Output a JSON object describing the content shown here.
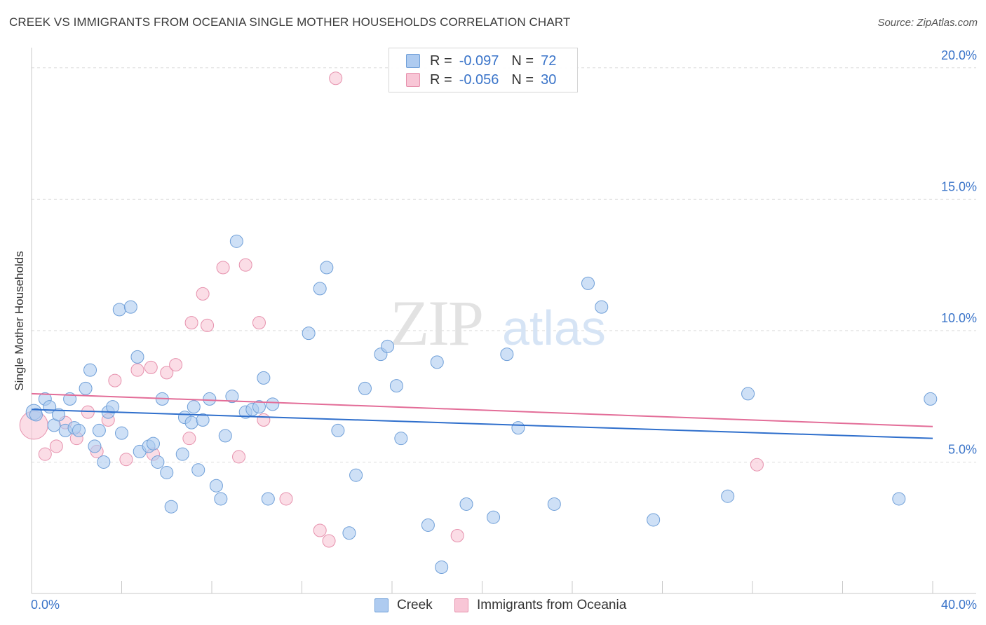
{
  "title": "CREEK VS IMMIGRANTS FROM OCEANIA SINGLE MOTHER HOUSEHOLDS CORRELATION CHART",
  "source": "Source: ZipAtlas.com",
  "watermark": {
    "zip": "ZIP",
    "atlas": "atlas"
  },
  "legend": {
    "creek": {
      "r_label": "R =",
      "r_value": "-0.097",
      "n_label": "N =",
      "n_value": "72"
    },
    "oceania": {
      "r_label": "R =",
      "r_value": "-0.056",
      "n_label": "N =",
      "n_value": "30"
    }
  },
  "colors": {
    "creek_fill": "#aecbf0",
    "creek_stroke": "#6f9fd8",
    "creek_line": "#2f6fcc",
    "oceania_fill": "#f8c6d6",
    "oceania_stroke": "#e691ad",
    "oceania_line": "#e36d98",
    "tick_label": "#3a74c9",
    "grid": "#dcdcdc"
  },
  "chart_data": {
    "type": "scatter",
    "ylabel": "Single Mother Households",
    "xlim": [
      0,
      40
    ],
    "ylim": [
      0,
      20.5
    ],
    "x_ticks": [
      0,
      4,
      8,
      12,
      16,
      20,
      24,
      28,
      32,
      36,
      40
    ],
    "x_tick_labels": {
      "start": "0.0%",
      "end": "40.0%"
    },
    "y_ticks": [
      5,
      10,
      15,
      20
    ],
    "y_tick_labels": [
      "5.0%",
      "10.0%",
      "15.0%",
      "20.0%"
    ],
    "grid": "horizontal dashed",
    "legend_placement": "top-center",
    "series": [
      {
        "name": "Creek",
        "trend": {
          "x": [
            0,
            40
          ],
          "y": [
            7.0,
            5.9
          ]
        },
        "points": [
          [
            0.1,
            6.9
          ],
          [
            0.2,
            6.8
          ],
          [
            0.6,
            7.4
          ],
          [
            0.8,
            7.1
          ],
          [
            1.0,
            6.4
          ],
          [
            1.2,
            6.8
          ],
          [
            1.5,
            6.2
          ],
          [
            1.7,
            7.4
          ],
          [
            1.9,
            6.3
          ],
          [
            2.1,
            6.2
          ],
          [
            2.4,
            7.8
          ],
          [
            2.6,
            8.5
          ],
          [
            2.8,
            5.6
          ],
          [
            3.0,
            6.2
          ],
          [
            3.2,
            5.0
          ],
          [
            3.4,
            6.9
          ],
          [
            3.6,
            7.1
          ],
          [
            4.0,
            6.1
          ],
          [
            3.9,
            10.8
          ],
          [
            4.4,
            10.9
          ],
          [
            4.7,
            9.0
          ],
          [
            4.8,
            5.4
          ],
          [
            5.2,
            5.6
          ],
          [
            5.4,
            5.7
          ],
          [
            5.6,
            5.0
          ],
          [
            5.8,
            7.4
          ],
          [
            6.0,
            4.6
          ],
          [
            6.2,
            3.3
          ],
          [
            6.7,
            5.3
          ],
          [
            6.8,
            6.7
          ],
          [
            7.1,
            6.5
          ],
          [
            7.2,
            7.1
          ],
          [
            7.6,
            6.6
          ],
          [
            7.4,
            4.7
          ],
          [
            7.9,
            7.4
          ],
          [
            8.2,
            4.1
          ],
          [
            8.4,
            3.6
          ],
          [
            8.6,
            6.0
          ],
          [
            8.9,
            7.5
          ],
          [
            9.1,
            13.4
          ],
          [
            9.5,
            6.9
          ],
          [
            9.8,
            7.0
          ],
          [
            10.1,
            7.1
          ],
          [
            10.3,
            8.2
          ],
          [
            10.7,
            7.2
          ],
          [
            10.5,
            3.6
          ],
          [
            12.3,
            9.9
          ],
          [
            12.8,
            11.6
          ],
          [
            13.1,
            12.4
          ],
          [
            13.6,
            6.2
          ],
          [
            14.1,
            2.3
          ],
          [
            14.4,
            4.5
          ],
          [
            14.8,
            7.8
          ],
          [
            15.5,
            9.1
          ],
          [
            15.8,
            9.4
          ],
          [
            16.2,
            7.9
          ],
          [
            16.4,
            5.9
          ],
          [
            17.6,
            2.6
          ],
          [
            18.0,
            8.8
          ],
          [
            18.2,
            1.0
          ],
          [
            19.3,
            3.4
          ],
          [
            20.5,
            2.9
          ],
          [
            21.1,
            9.1
          ],
          [
            21.6,
            6.3
          ],
          [
            23.2,
            3.4
          ],
          [
            24.7,
            11.8
          ],
          [
            25.3,
            10.9
          ],
          [
            27.6,
            2.8
          ],
          [
            30.9,
            3.7
          ],
          [
            31.8,
            7.6
          ],
          [
            38.5,
            3.6
          ],
          [
            39.9,
            7.4
          ]
        ]
      },
      {
        "name": "Immigrants from Oceania",
        "trend": {
          "x": [
            0,
            40
          ],
          "y": [
            7.6,
            6.35
          ]
        },
        "points": [
          [
            0.1,
            6.4
          ],
          [
            0.6,
            5.3
          ],
          [
            1.1,
            5.6
          ],
          [
            1.5,
            6.5
          ],
          [
            2.0,
            5.9
          ],
          [
            2.5,
            6.9
          ],
          [
            2.9,
            5.4
          ],
          [
            3.4,
            6.6
          ],
          [
            3.7,
            8.1
          ],
          [
            4.2,
            5.1
          ],
          [
            4.7,
            8.5
          ],
          [
            5.3,
            8.6
          ],
          [
            5.4,
            5.3
          ],
          [
            6.0,
            8.4
          ],
          [
            6.4,
            8.7
          ],
          [
            7.0,
            5.9
          ],
          [
            7.1,
            10.3
          ],
          [
            7.8,
            10.2
          ],
          [
            8.5,
            12.4
          ],
          [
            7.6,
            11.4
          ],
          [
            9.2,
            5.2
          ],
          [
            9.5,
            12.5
          ],
          [
            10.1,
            10.3
          ],
          [
            10.3,
            6.6
          ],
          [
            11.3,
            3.6
          ],
          [
            12.8,
            2.4
          ],
          [
            13.2,
            2.0
          ],
          [
            13.5,
            19.6
          ],
          [
            18.9,
            2.2
          ],
          [
            32.2,
            4.9
          ]
        ]
      }
    ]
  }
}
